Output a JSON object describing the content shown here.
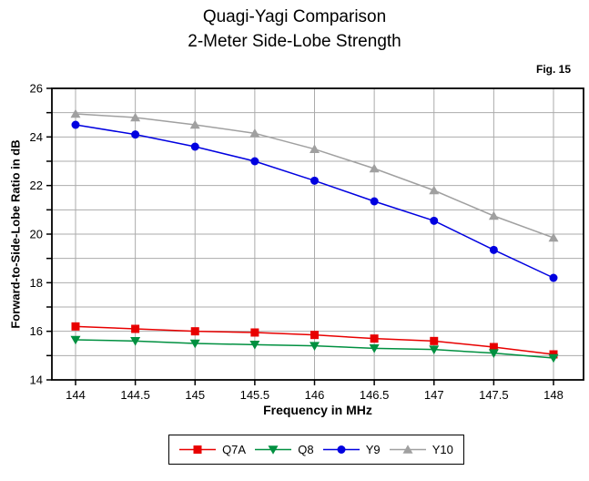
{
  "title_line1": "Quagi-Yagi Comparison",
  "title_line2": "2-Meter Side-Lobe Strength",
  "fig_label": "Fig. 15",
  "chart_data": {
    "type": "line",
    "title": "Quagi-Yagi Comparison — 2-Meter Side-Lobe Strength",
    "xlabel": "Frequency in MHz",
    "ylabel": "Forward-to-Side-Lobe Ratio in dB",
    "x": [
      144,
      144.5,
      145,
      145.5,
      146,
      146.5,
      147,
      147.5,
      148
    ],
    "series": [
      {
        "name": "Q7A",
        "marker": "square",
        "color": "#e80000",
        "values": [
          16.2,
          16.1,
          16.0,
          15.95,
          15.85,
          15.7,
          15.6,
          15.35,
          15.05
        ]
      },
      {
        "name": "Q8",
        "marker": "triangle-down",
        "color": "#009040",
        "values": [
          15.65,
          15.6,
          15.5,
          15.45,
          15.4,
          15.3,
          15.25,
          15.1,
          14.9
        ]
      },
      {
        "name": "Y9",
        "marker": "circle",
        "color": "#0000e0",
        "values": [
          24.5,
          24.1,
          23.6,
          23.0,
          22.2,
          21.35,
          20.55,
          19.35,
          18.2
        ]
      },
      {
        "name": "Y10",
        "marker": "triangle-up",
        "color": "#a0a0a0",
        "values": [
          24.95,
          24.8,
          24.5,
          24.15,
          23.5,
          22.7,
          21.8,
          20.75,
          19.85
        ]
      }
    ],
    "ylim": [
      14,
      26
    ],
    "xlim": [
      143.8,
      148.25
    ],
    "y_major_tick_labels": [
      26,
      24,
      22,
      20,
      18,
      16,
      14
    ],
    "y_grid_step": 1,
    "x_grid_step": 0.5,
    "grid": true,
    "legend_position": "bottom"
  },
  "colors": {
    "grid": "#ababab",
    "frame": "#000000",
    "background": "#ffffff"
  }
}
